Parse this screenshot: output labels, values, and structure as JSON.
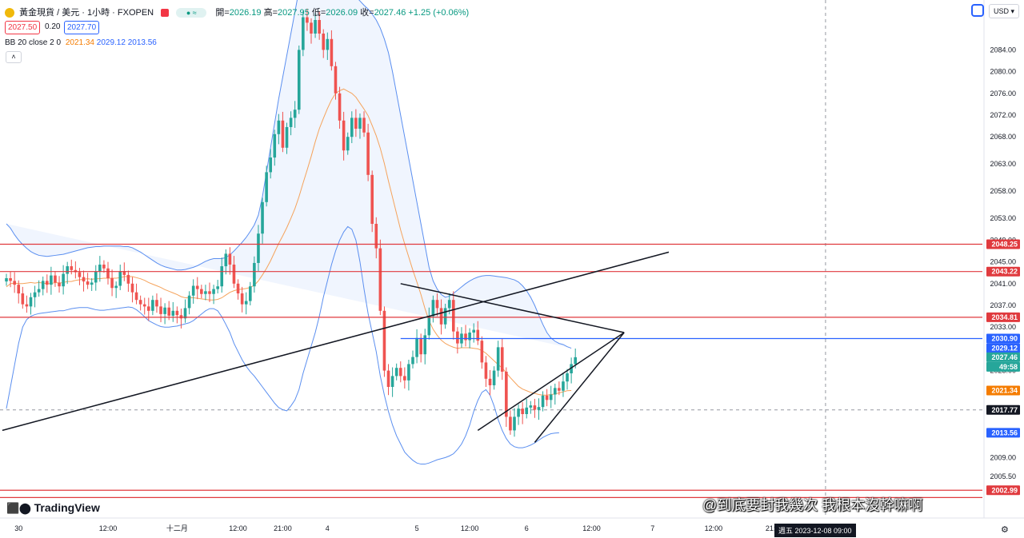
{
  "header": {
    "symbol": "黃金現貨 / 美元 · 1小時 · FXOPEN",
    "ohlc": {
      "open_label": "開",
      "open": "2026.19",
      "high_label": "高",
      "high": "2027.95",
      "low_label": "低",
      "low": "2026.09",
      "close_label": "收",
      "close": "2027.46",
      "change": "+1.25 (+0.06%)"
    },
    "sell_price": "2027.50",
    "spread": "0.20",
    "buy_price": "2027.70",
    "indicator": {
      "name": "BB 20 close 2 0",
      "basis": "2021.34",
      "upper": "2029.12",
      "lower": "2013.56"
    },
    "currency": "USD"
  },
  "footer": {
    "logo": "TradingView",
    "date_tag": "週五 2023-12-08 09:00",
    "watermark": "@到底要封我幾次 我根本沒幹嘛啊"
  },
  "colors": {
    "up": "#26a69a",
    "down": "#ef5350",
    "bb_upper_lower": "#5b8ff0",
    "bb_basis": "#f5a35c",
    "hline": "#e03a3e",
    "blue_line": "#2962ff",
    "trendline": "#131722"
  },
  "chart_data": {
    "type": "candlestick",
    "ylim": [
      2002,
      2087
    ],
    "y_ticks": [
      "2084.00",
      "2080.00",
      "2076.00",
      "2072.00",
      "2068.00",
      "2063.00",
      "2058.00",
      "2053.00",
      "2049.00",
      "2045.00",
      "2041.00",
      "2037.00",
      "2033.00",
      "2025.00",
      "2009.00",
      "2005.50"
    ],
    "x_ticks": [
      "30",
      "12:00",
      "十二月",
      "12:00",
      "21:00",
      "4",
      "5",
      "12:00",
      "6",
      "12:00",
      "7",
      "12:00",
      "21:00",
      "11"
    ],
    "price_tags": [
      {
        "label": "2048.25",
        "value": 2048.25,
        "color": "#e03a3e"
      },
      {
        "label": "2043.22",
        "value": 2043.22,
        "color": "#e03a3e"
      },
      {
        "label": "2034.81",
        "value": 2034.81,
        "color": "#e03a3e"
      },
      {
        "label": "2030.90",
        "value": 2030.9,
        "color": "#2962ff"
      },
      {
        "label": "2029.12",
        "value": 2029.12,
        "color": "#2962ff"
      },
      {
        "label": "2027.46",
        "value": 2027.46,
        "color": "#26a69a"
      },
      {
        "label": "49:58",
        "value": 2025.7,
        "color": "#26a69a"
      },
      {
        "label": "2021.34",
        "value": 2021.34,
        "color": "#f57c00"
      },
      {
        "label": "2017.77",
        "value": 2017.77,
        "color": "#131722"
      },
      {
        "label": "2013.56",
        "value": 2013.56,
        "color": "#2962ff"
      },
      {
        "label": "2002.99",
        "value": 2002.99,
        "color": "#e03a3e"
      }
    ],
    "horizontal_lines": [
      2048.25,
      2043.22,
      2034.81,
      2002.99,
      2001.65
    ],
    "blue_line": 2030.9,
    "closes": [
      2042.0,
      2041.5,
      2040.8,
      2039.2,
      2037.2,
      2036.8,
      2038.5,
      2039.4,
      2040.0,
      2041.5,
      2040.8,
      2042.5,
      2041.2,
      2040.5,
      2042.8,
      2044.2,
      2043.5,
      2043.1,
      2042.2,
      2041.4,
      2040.8,
      2041.2,
      2043.2,
      2044.5,
      2043.8,
      2042.0,
      2040.2,
      2040.6,
      2043.3,
      2042.6,
      2041.0,
      2039.4,
      2038.0,
      2037.2,
      2036.8,
      2036.0,
      2038.0,
      2036.8,
      2035.4,
      2036.6,
      2035.1,
      2036.0,
      2035.2,
      2034.6,
      2036.5,
      2038.8,
      2040.6,
      2040.0,
      2039.1,
      2039.6,
      2039.1,
      2040.0,
      2040.5,
      2044.2,
      2046.5,
      2044.5,
      2041.0,
      2039.2,
      2037.2,
      2037.8,
      2040.5,
      2044.8,
      2050.2,
      2056.0,
      2061.5,
      2064.2,
      2068.5,
      2071.0,
      2066.0,
      2069.8,
      2071.5,
      2073.0,
      2084.0,
      2090.0,
      2089.0,
      2087.0,
      2089.5,
      2087.0,
      2084.0,
      2086.0,
      2081.0,
      2076.0,
      2071.0,
      2065.5,
      2068.0,
      2071.5,
      2069.5,
      2071.5,
      2068.8,
      2061.0,
      2052.0,
      2047.5,
      2036.0,
      2025.0,
      2022.0,
      2024.0,
      2025.5,
      2024.0,
      2023.2,
      2026.2,
      2027.5,
      2031.0,
      2028.0,
      2031.5,
      2035.0,
      2038.0,
      2036.5,
      2033.5,
      2036.5,
      2038.0,
      2032.2,
      2030.0,
      2031.8,
      2030.6,
      2032.0,
      2032.5,
      2030.5,
      2026.5,
      2023.5,
      2022.3,
      2025.0,
      2029.3,
      2024.8,
      2016.5,
      2014.0,
      2016.5,
      2018.0,
      2017.0,
      2018.2,
      2018.6,
      2017.8,
      2018.3,
      2020.4,
      2019.6,
      2020.6,
      2021.8,
      2021.3,
      2023.0,
      2024.5,
      2026.2,
      2027.46
    ],
    "bb_basis": [
      2040.4,
      2041.0,
      2041.1,
      2041.0,
      2041.0,
      2041.1,
      2041.2,
      2041.1,
      2041.2,
      2041.1,
      2041.0,
      2041.0,
      2041.2,
      2041.1,
      2041.2,
      2041.4,
      2041.4,
      2041.6,
      2041.7,
      2041.8,
      2041.9,
      2041.8,
      2041.9,
      2041.9,
      2042.0,
      2042.0,
      2042.0,
      2042.0,
      2042.1,
      2042.3,
      2042.3,
      2042.3,
      2042.1,
      2041.9,
      2041.6,
      2041.2,
      2040.9,
      2040.6,
      2040.3,
      2039.9,
      2039.6,
      2039.3,
      2039.0,
      2038.6,
      2038.4,
      2038.4,
      2038.4,
      2038.3,
      2038.2,
      2038.1,
      2038.0,
      2038.0,
      2038.1,
      2038.4,
      2038.9,
      2039.4,
      2039.7,
      2039.9,
      2040.0,
      2040.1,
      2040.3,
      2040.7,
      2041.5,
      2042.6,
      2043.8,
      2045.2,
      2046.8,
      2048.4,
      2049.8,
      2051.3,
      2053.0,
      2054.8,
      2057.0,
      2059.5,
      2061.9,
      2064.4,
      2067.1,
      2069.5,
      2071.4,
      2073.2,
      2074.8,
      2076.0,
      2076.5,
      2076.8,
      2076.4,
      2076.0,
      2075.3,
      2074.2,
      2073.1,
      2071.9,
      2070.1,
      2068.2,
      2065.9,
      2063.1,
      2059.9,
      2056.9,
      2053.9,
      2050.9,
      2048.3,
      2045.9,
      2043.5,
      2041.3,
      2039.0,
      2036.4,
      2034.2,
      2032.6,
      2031.5,
      2030.6,
      2030.0,
      2029.6,
      2029.3,
      2029.1,
      2029.2,
      2029.2,
      2029.2,
      2029.1,
      2029.0,
      2028.7,
      2028.2,
      2027.5,
      2026.8,
      2026.1,
      2025.5,
      2024.6,
      2023.7,
      2022.9,
      2022.1,
      2021.6,
      2021.3,
      2021.0,
      2020.8,
      2020.6,
      2020.5,
      2020.5,
      2020.6,
      2020.7,
      2020.9,
      2021.1,
      2021.3,
      2021.34
    ],
    "bb_upper": [
      2052.0,
      2051.2,
      2050.0,
      2049.0,
      2048.2,
      2047.5,
      2046.9,
      2046.5,
      2046.2,
      2046.1,
      2046.0,
      2046.1,
      2046.2,
      2046.3,
      2046.4,
      2046.6,
      2046.8,
      2047.0,
      2047.2,
      2047.4,
      2047.6,
      2047.7,
      2047.8,
      2047.8,
      2047.9,
      2047.9,
      2047.9,
      2047.9,
      2047.9,
      2047.8,
      2047.8,
      2047.6,
      2047.2,
      2046.8,
      2046.3,
      2045.8,
      2045.3,
      2044.8,
      2044.4,
      2044.1,
      2043.9,
      2043.7,
      2043.5,
      2043.5,
      2043.6,
      2043.8,
      2044.0,
      2044.3,
      2044.7,
      2045.1,
      2045.4,
      2045.6,
      2045.6,
      2045.6,
      2045.8,
      2046.3,
      2047.0,
      2047.8,
      2048.6,
      2049.5,
      2050.6,
      2051.8,
      2053.6,
      2057.0,
      2061.5,
      2066.0,
      2070.5,
      2075.0,
      2079.0,
      2083.0,
      2087.0,
      2091.0,
      2095.0,
      2098.0,
      2099.5,
      2100.0,
      2100.0,
      2100.0,
      2099.6,
      2099.0,
      2098.4,
      2097.6,
      2096.8,
      2096.0,
      2095.2,
      2094.5,
      2093.8,
      2093.0,
      2092.2,
      2091.5,
      2090.6,
      2089.5,
      2088.0,
      2086.0,
      2083.5,
      2080.0,
      2076.0,
      2072.0,
      2068.0,
      2064.0,
      2060.0,
      2056.0,
      2052.0,
      2048.0,
      2044.0,
      2041.5,
      2040.0,
      2039.0,
      2038.5,
      2038.7,
      2039.2,
      2039.8,
      2040.4,
      2041.0,
      2041.5,
      2041.9,
      2042.2,
      2042.4,
      2042.5,
      2042.5,
      2042.4,
      2042.3,
      2042.2,
      2042.1,
      2041.9,
      2041.7,
      2041.3,
      2040.6,
      2039.7,
      2038.5,
      2037.0,
      2035.2,
      2033.5,
      2032.0,
      2031.0,
      2030.4,
      2030.0,
      2029.8,
      2029.4,
      2029.12
    ],
    "bb_lower": [
      2018.0,
      2022.0,
      2026.0,
      2030.0,
      2033.0,
      2034.4,
      2035.0,
      2035.3,
      2035.5,
      2035.6,
      2035.7,
      2035.8,
      2035.9,
      2036.0,
      2036.0,
      2036.2,
      2036.4,
      2036.5,
      2036.6,
      2036.6,
      2036.6,
      2036.4,
      2036.2,
      2036.1,
      2036.1,
      2036.2,
      2036.3,
      2036.4,
      2036.5,
      2036.6,
      2036.7,
      2036.6,
      2036.2,
      2035.6,
      2034.9,
      2034.2,
      2033.8,
      2033.4,
      2033.1,
      2033.0,
      2033.0,
      2033.1,
      2033.2,
      2033.4,
      2033.6,
      2033.8,
      2034.2,
      2034.8,
      2035.4,
      2036.0,
      2036.4,
      2036.4,
      2036.0,
      2034.9,
      2033.5,
      2032.0,
      2030.0,
      2028.5,
      2027.0,
      2025.8,
      2024.8,
      2024.0,
      2023.0,
      2022.0,
      2021.0,
      2020.0,
      2019.0,
      2018.2,
      2017.8,
      2017.6,
      2018.5,
      2019.6,
      2021.5,
      2024.5,
      2027.0,
      2029.5,
      2032.0,
      2035.0,
      2038.5,
      2041.5,
      2044.5,
      2047.0,
      2049.0,
      2050.5,
      2051.5,
      2051.0,
      2049.0,
      2045.0,
      2040.0,
      2035.5,
      2032.0,
      2028.5,
      2024.0,
      2020.5,
      2017.5,
      2015.0,
      2013.0,
      2011.5,
      2010.0,
      2009.2,
      2008.5,
      2008.0,
      2007.8,
      2007.8,
      2008.0,
      2008.3,
      2008.6,
      2008.8,
      2009.0,
      2009.3,
      2009.7,
      2010.5,
      2011.5,
      2013.0,
      2015.0,
      2017.5,
      2019.5,
      2021.0,
      2021.5,
      2020.5,
      2018.5,
      2016.0,
      2014.0,
      2012.5,
      2011.5,
      2011.0,
      2010.8,
      2010.8,
      2011.0,
      2011.3,
      2011.7,
      2012.2,
      2012.7,
      2013.1,
      2013.4,
      2013.5,
      2013.56
    ],
    "trendlines": [
      {
        "name": "rising-support",
        "x_bar": [
          -1,
          163
        ],
        "y": [
          2014.0,
          2046.8
        ]
      },
      {
        "name": "triangle-top",
        "x_bar": [
          97,
          152
        ],
        "y": [
          2041.0,
          2032.0
        ]
      },
      {
        "name": "triangle-apex-edge",
        "x_bar": [
          152,
          116
        ],
        "y": [
          2032.0,
          2014.0
        ]
      }
    ],
    "crosshair": {
      "price": 2017.77,
      "bar": 174
    },
    "x_tick_bars": [
      3,
      25,
      42,
      57,
      68,
      79,
      101,
      114,
      128,
      144,
      159,
      174,
      189,
      204
    ]
  }
}
